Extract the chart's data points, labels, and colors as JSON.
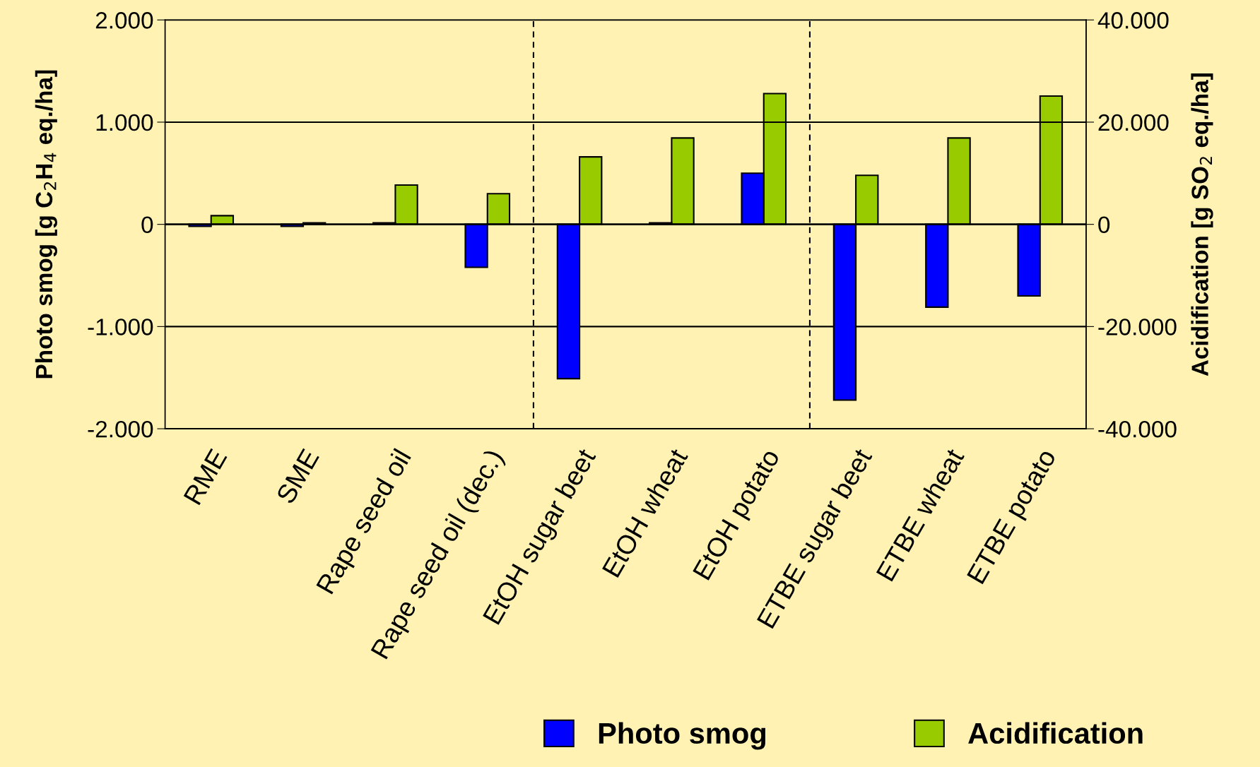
{
  "chart_data": {
    "type": "bar",
    "ylabel": "Photo smog [g C$_{2}$H$_{4}$ eq./ha]",
    "y2label": "Acidification [g SO$_{2}$ eq./ha]",
    "categories": [
      "RME",
      "SME",
      "Rape seed oil",
      "Rape seed oil (dec.)",
      "EtOH sugar beet",
      "EtOH wheat",
      "EtOH potato",
      "ETBE sugar beet",
      "ETBE wheat",
      "ETBE potato"
    ],
    "series": [
      {
        "name": "Photo smog",
        "color": "#0000ff",
        "values": [
          -20,
          -20,
          15,
          -420,
          -1510,
          15,
          500,
          -1720,
          -810,
          -700
        ]
      },
      {
        "name": "Acidification",
        "color": "#99cc00",
        "axis": "y2",
        "values": [
          1700,
          300,
          7700,
          6000,
          13200,
          16900,
          25600,
          9600,
          16900,
          25100
        ]
      }
    ],
    "ylim": [
      -2000,
      2000
    ],
    "yticks": [
      {
        "value": -2000,
        "label": "-2.000"
      },
      {
        "value": -1000,
        "label": "-1.000"
      },
      0,
      {
        "value": 1000,
        "label": "1.000"
      },
      {
        "value": 2000,
        "label": "2.000"
      }
    ],
    "y2lim": [
      -40000,
      40000
    ],
    "y2ticks": [
      {
        "value": -40000,
        "label": "-40.000"
      },
      {
        "value": -20000,
        "label": "-20.000"
      },
      0,
      {
        "value": 20000,
        "label": "20.000"
      },
      {
        "value": 40000,
        "label": "40.000"
      }
    ],
    "grid": "y",
    "legend": "bottom"
  }
}
